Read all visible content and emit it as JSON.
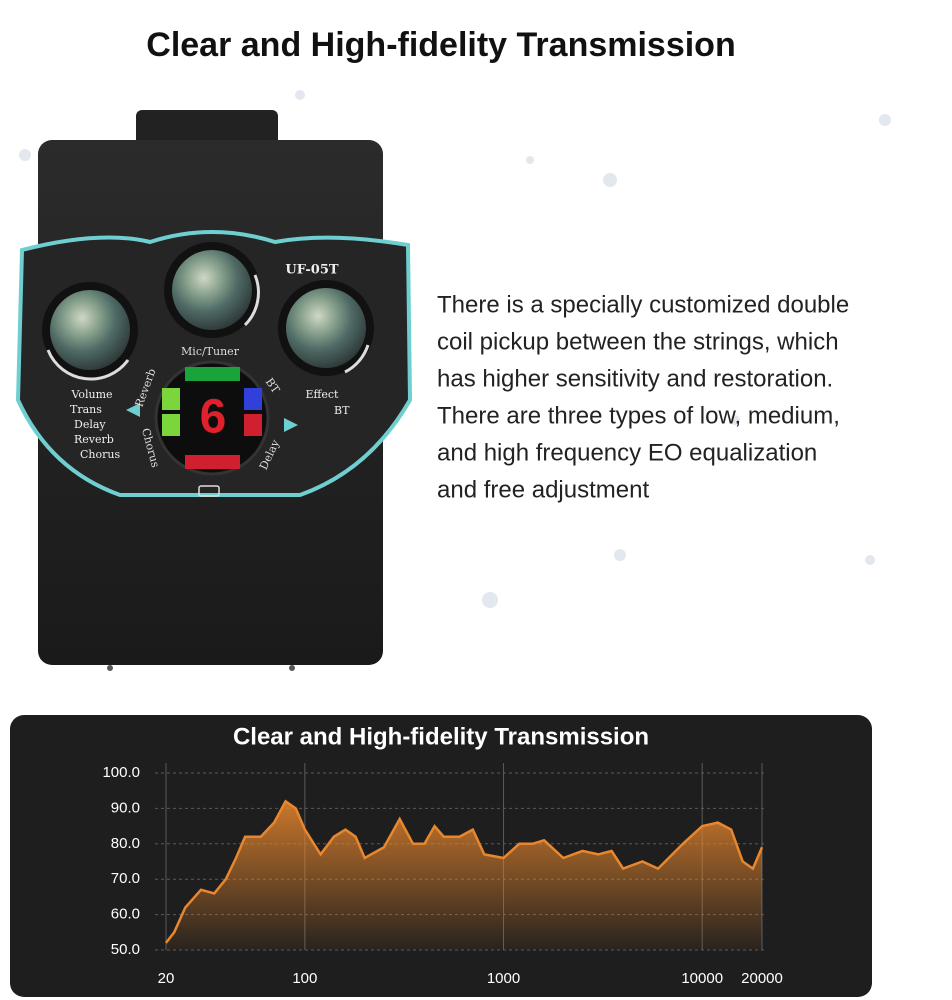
{
  "header": {
    "title": "Clear and High-fidelity Transmission"
  },
  "description": {
    "lines": [
      "There is a specially customized double",
      "coil pickup between the strings, which",
      "has higher sensitivity and restoration.",
      "There are three types of low, medium,",
      "and high frequency EO equalization",
      "and free adjustment"
    ]
  },
  "device": {
    "model": "UF-05T",
    "knob_top": "Mic/Tuner",
    "knob_left": [
      "Volume",
      "Trans",
      "Delay",
      "Reverb",
      "Chorus"
    ],
    "knob_right": [
      "Effect",
      "BT"
    ],
    "ring_labels": [
      "Reverb",
      "BT",
      "Chorus",
      "Delay"
    ],
    "display": "6"
  },
  "chart_data": {
    "type": "area",
    "title": "Clear and High-fidelity Transmission",
    "log_x": true,
    "color": "#e8872e",
    "x": [
      20,
      22,
      25,
      30,
      35,
      40,
      45,
      50,
      60,
      70,
      80,
      90,
      100,
      120,
      140,
      160,
      180,
      200,
      250,
      300,
      350,
      400,
      450,
      500,
      600,
      700,
      800,
      1000,
      1200,
      1400,
      1600,
      2000,
      2500,
      3000,
      3500,
      4000,
      5000,
      6000,
      8000,
      10000,
      12000,
      14000,
      16000,
      18000,
      20000
    ],
    "values": [
      52,
      55,
      62,
      67,
      66,
      70,
      76,
      82,
      82,
      86,
      92,
      90,
      84,
      77,
      82,
      84,
      82,
      76,
      79,
      87,
      80,
      80,
      85,
      82,
      82,
      84,
      77,
      76,
      80,
      80,
      81,
      76,
      78,
      77,
      78,
      73,
      75,
      73,
      80,
      85,
      86,
      84,
      75,
      73,
      79
    ],
    "xlim": [
      20,
      20000
    ],
    "ylim": [
      50,
      100
    ],
    "xticks": [
      20,
      100,
      1000,
      10000,
      20000
    ],
    "yticks": [
      {
        "value": 100,
        "label": "100.0"
      },
      {
        "value": 90,
        "label": "90.0"
      },
      {
        "value": 80,
        "label": "80.0"
      },
      {
        "value": 70,
        "label": "70.0"
      },
      {
        "value": 60,
        "label": "60.0"
      },
      {
        "value": 50,
        "label": "50.0"
      }
    ],
    "grid": true
  }
}
